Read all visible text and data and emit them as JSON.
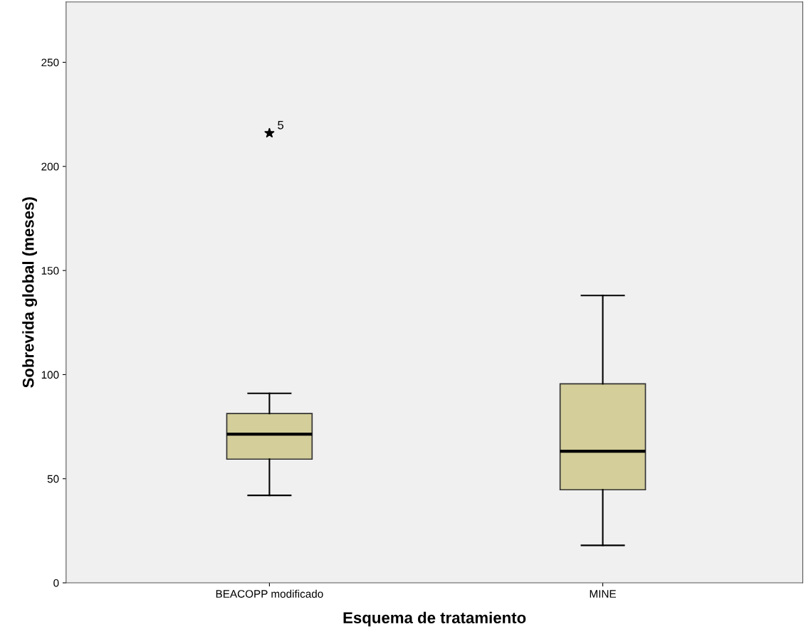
{
  "chart_data": {
    "type": "box",
    "xlabel": "Esquema de tratamiento",
    "ylabel": "Sobrevida global (meses)",
    "categories": [
      "BEACOPP modificado",
      "MINE"
    ],
    "boxes": [
      {
        "low": 42,
        "q1": 59.4,
        "median": 71.4,
        "q3": 81.3,
        "high": 91,
        "outliers": [
          216
        ]
      },
      {
        "low": 18,
        "q1": 44.7,
        "median": 63.2,
        "q3": 95.6,
        "high": 138
      }
    ],
    "color": "#d3ce9a",
    "marker": "star",
    "annotations": [
      "5"
    ],
    "ylim": [
      0,
      279
    ],
    "yticks": [
      0,
      50,
      100,
      150,
      200,
      250
    ],
    "grid": false,
    "legend": false
  }
}
